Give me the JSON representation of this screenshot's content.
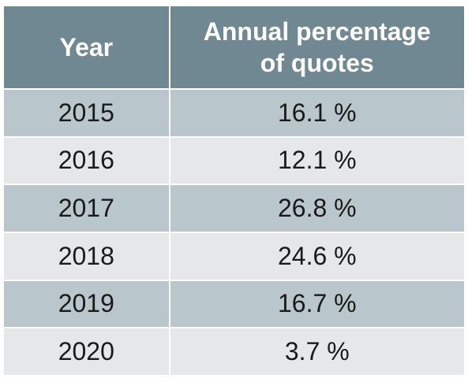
{
  "chart_data": {
    "type": "table",
    "columns": [
      "Year",
      "Annual percentage of quotes"
    ],
    "header_lines": [
      [
        "Year"
      ],
      [
        "Annual percentage",
        "of quotes"
      ]
    ],
    "rows": [
      {
        "year": "2015",
        "value": "16.1 %"
      },
      {
        "year": "2016",
        "value": "12.1 %"
      },
      {
        "year": "2017",
        "value": "26.8 %"
      },
      {
        "year": "2018",
        "value": "24.6 %"
      },
      {
        "year": "2019",
        "value": "16.7 %"
      },
      {
        "year": "2020",
        "value": "3.7 %"
      }
    ]
  },
  "colors": {
    "header_bg": "#6f8892",
    "header_text": "#ffffff",
    "row_odd_bg": "#b9c6cb",
    "row_even_bg": "#e6e7e8",
    "cell_text": "#1a1a1a"
  }
}
